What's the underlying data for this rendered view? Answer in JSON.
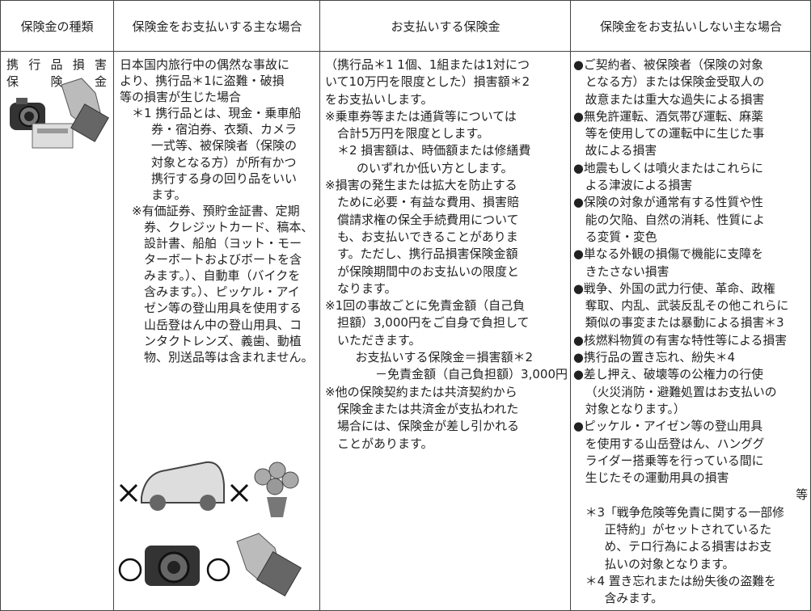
{
  "table": {
    "header": [
      "保険金の種類",
      "保険金をお支払いする主な場合",
      "お支払いする保険金",
      "保険金をお支払いしない主な場合"
    ],
    "type_lines": [
      "携行品損害",
      "保険金"
    ],
    "cases": [
      [
        "日本国内旅行中の偶然な事故に",
        "より、携行品＊1に盗難・破損",
        "等の損害が生じた場合"
      ],
      [
        "＊1 携行品とは、現金・乗車船",
        "券・宿泊券、衣類、カメラ",
        "一式等、被保険者（保険の",
        "対象となる方）が所有かつ",
        "携行する身の回り品をいい",
        "ます。"
      ],
      [
        "※有価証券、預貯金証書、定期",
        "券、クレジットカード、稿本、",
        "設計書、船舶（ヨット・モー",
        "ターボートおよびボートを含",
        "みます。）、自動車（バイクを",
        "含みます。）、ピッケル・アイ",
        "ゼン等の登山用具を使用する",
        "山岳登はん中の登山用具、コ",
        "ンタクトレンズ、義歯、動植",
        "物、別送品等は含まれません。"
      ]
    ],
    "payments": [
      [
        "（携行品＊1 1個、1組または1対につ",
        "いて10万円を限度とした）損害額＊2",
        "をお支払いします。"
      ],
      [
        "※乗車券等または通貨等については",
        "合計5万円を限度とします。"
      ],
      [
        "＊2 損害額は、時価額または修繕費",
        "のいずれか低い方とします。"
      ],
      [
        "※損害の発生または拡大を防止する",
        "ために必要・有益な費用、損害賠",
        "償請求権の保全手続費用について",
        "も、お支払いできることがありま",
        "す。ただし、携行品損害保険金額",
        "が保険期間中のお支払いの限度と",
        "なります。"
      ],
      [
        "※1回の事故ごとに免責金額（自己負",
        "担額）3,000円をご自身で負担して",
        "いただきます。"
      ],
      [
        "お支払いする保険金＝損害額＊2",
        "－免責金額（自己負担額）3,000円"
      ],
      [
        "※他の保険契約または共済契約から",
        "保険金または共済金が支払われた",
        "場合には、保険金が差し引かれる",
        "ことがあります。"
      ]
    ],
    "exclusions": [
      [
        "●ご契約者、被保険者（保険の対象",
        "となる方）または保険金受取人の",
        "故意または重大な過失による損害"
      ],
      [
        "●無免許運転、酒気帯び運転、麻薬",
        "等を使用しての運転中に生じた事",
        "故による損害"
      ],
      [
        "●地震もしくは噴火またはこれらに",
        "よる津波による損害"
      ],
      [
        "●保険の対象が通常有する性質や性",
        "能の欠陥、自然の消耗、性質によ",
        "る変質・変色"
      ],
      [
        "●単なる外観の損傷で機能に支障を",
        "きたさない損害"
      ],
      [
        "●戦争、外国の武力行使、革命、政権",
        "奪取、内乱、武装反乱その他これらに",
        "類似の事変または暴動による損害＊3"
      ],
      [
        "●核燃料物質の有害な特性等による損害"
      ],
      [
        "●携行品の置き忘れ、紛失＊4"
      ],
      [
        "●差し押え、破壊等の公権力の行使",
        "（火災消防・避難処置はお支払いの",
        "対象となります。）"
      ],
      [
        "●ピッケル・アイゼン等の登山用具",
        "を使用する山岳登はん、ハンググ",
        "ライダー搭乗等を行っている間に",
        "生じたその運動用具の損害"
      ],
      [
        "等"
      ],
      [
        "＊3「戦争危険等免責に関する一部修",
        "正特約」がセットされているた",
        "め、テロ行為による損害はお支",
        "払いの対象となります。"
      ],
      [
        "＊4 置き忘れまたは紛失後の盗難を",
        "含みます。"
      ]
    ]
  }
}
